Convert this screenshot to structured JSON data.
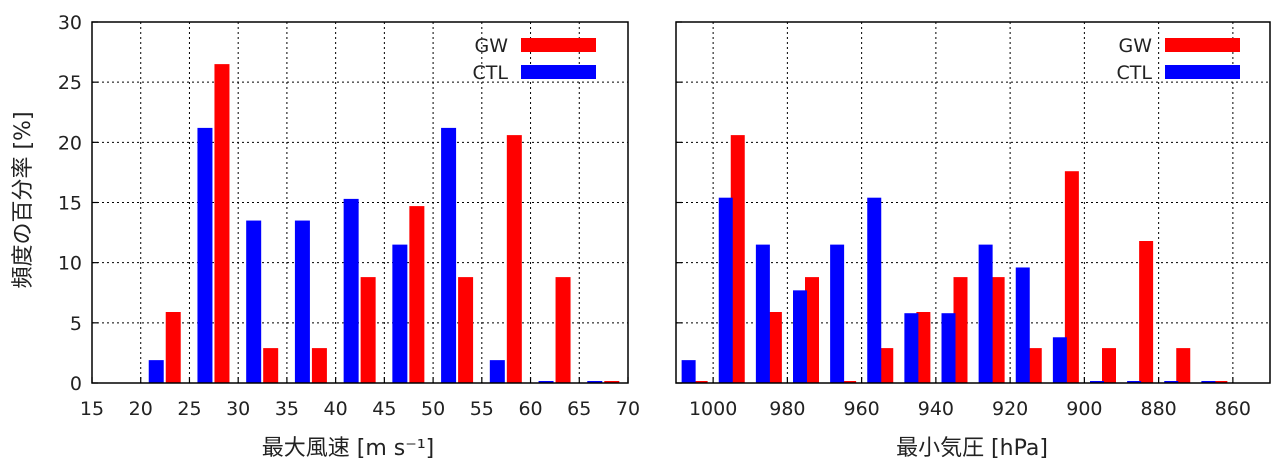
{
  "colors": {
    "GW": "#ff0000",
    "CTL": "#0000ff"
  },
  "chart_data": [
    {
      "type": "bar",
      "xlabel": "最大風速 [m s⁻¹]",
      "ylabel": "頻度の百分率 [%]",
      "x_ticks": [
        "15",
        "20",
        "25",
        "30",
        "35",
        "40",
        "45",
        "50",
        "55",
        "60",
        "65",
        "70"
      ],
      "y_ticks": [
        "0",
        "5",
        "10",
        "15",
        "20",
        "25",
        "30"
      ],
      "xlim": [
        15,
        70
      ],
      "ylim": [
        0,
        30
      ],
      "grid": true,
      "legend_position": "top-right",
      "categories": [
        20,
        25,
        30,
        35,
        40,
        45,
        50,
        55,
        60,
        65
      ],
      "series": [
        {
          "name": "GW",
          "values": [
            5.9,
            26.5,
            2.9,
            2.9,
            8.8,
            14.7,
            8.8,
            20.6,
            8.8,
            0.0
          ]
        },
        {
          "name": "CTL",
          "values": [
            1.9,
            21.2,
            13.5,
            13.5,
            15.3,
            11.5,
            21.2,
            1.9,
            0.0,
            0.0
          ]
        }
      ]
    },
    {
      "type": "bar",
      "xlabel": "最小気圧 [hPa]",
      "ylabel": "",
      "x_ticks": [
        "1000",
        "980",
        "960",
        "940",
        "920",
        "900",
        "880",
        "860"
      ],
      "y_ticks": [],
      "xlim": [
        1010,
        850
      ],
      "ylim": [
        0,
        30
      ],
      "grid": true,
      "legend_position": "top-right",
      "categories": [
        1000,
        990,
        980,
        970,
        960,
        950,
        940,
        930,
        920,
        910,
        900,
        890,
        880,
        870,
        860
      ],
      "series": [
        {
          "name": "GW",
          "values": [
            0.0,
            20.6,
            5.9,
            8.8,
            0.0,
            2.9,
            5.9,
            8.8,
            8.8,
            2.9,
            17.6,
            2.9,
            11.8,
            2.9,
            0.0
          ]
        },
        {
          "name": "CTL",
          "values": [
            1.9,
            15.4,
            11.5,
            7.7,
            11.5,
            15.4,
            5.8,
            5.8,
            11.5,
            9.6,
            3.8,
            0.0,
            0.0,
            0.0,
            0.0
          ]
        }
      ]
    }
  ]
}
